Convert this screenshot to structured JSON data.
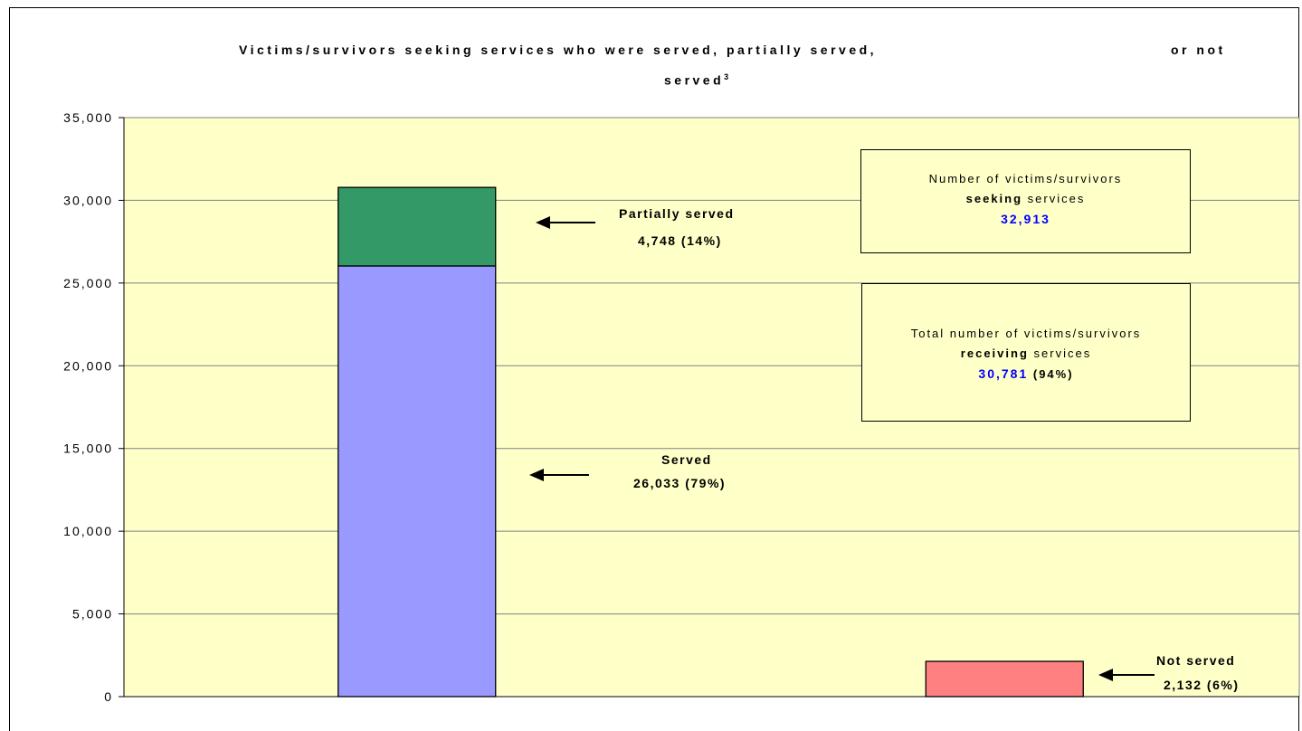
{
  "chart_data": {
    "type": "bar",
    "title_line1": "Victims/survivors seeking services who were served, partially served,",
    "title_or_not": "or not",
    "title_line2": "served",
    "title_superscript": "3",
    "ylim": [
      0,
      35000
    ],
    "yticks": [
      0,
      5000,
      10000,
      15000,
      20000,
      25000,
      30000,
      35000
    ],
    "ytick_labels": [
      "0",
      "5,000",
      "10,000",
      "15,000",
      "20,000",
      "25,000",
      "30,000",
      "35,000"
    ],
    "grid": true,
    "plot_background": "#ffffc8",
    "bars": [
      {
        "segments": [
          {
            "name": "Served",
            "value": 26033,
            "color": "#9999ff"
          },
          {
            "name": "Partially served",
            "value": 4748,
            "color": "#339966"
          }
        ]
      },
      {
        "segments": [
          {
            "name": "Not served",
            "value": 2132,
            "color": "#ff8080"
          }
        ]
      }
    ],
    "annotations": {
      "partially_served": {
        "label": "Partially served",
        "value_text": "4,748 (14%)"
      },
      "served": {
        "label": "Served",
        "value_text": "26,033 (79%)"
      },
      "not_served": {
        "label": "Not served",
        "value_text": "2,132 (6%)"
      }
    },
    "boxes": {
      "seeking": {
        "line1": "Number of victims/survivors",
        "bold": "seeking",
        "rest": "services",
        "number": "32,913"
      },
      "receiving": {
        "line1": "Total number of victims/survivors",
        "bold": "receiving",
        "rest": "services",
        "number": "30,781",
        "pct": "(94%)"
      }
    }
  }
}
